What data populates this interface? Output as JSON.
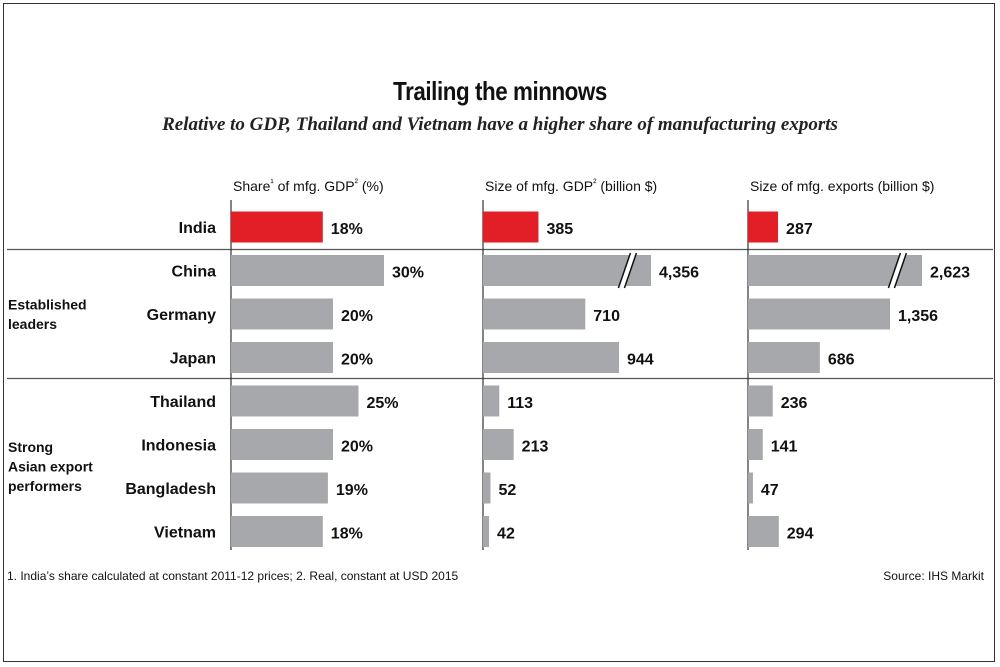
{
  "title": "Trailing the minnows",
  "subtitle": "Relative to GDP, Thailand and Vietnam have a higher share of manufacturing exports",
  "chart_data": {
    "type": "bar",
    "orientation": "horizontal",
    "categories": [
      "India",
      "China",
      "Germany",
      "Japan",
      "Thailand",
      "Indonesia",
      "Bangladesh",
      "Vietnam"
    ],
    "groups": [
      {
        "label": "Established\nleaders",
        "categories": [
          "China",
          "Germany",
          "Japan"
        ]
      },
      {
        "label": "Strong\nAsian export\nperformers",
        "categories": [
          "Thailand",
          "Indonesia",
          "Bangladesh",
          "Vietnam"
        ]
      }
    ],
    "highlight": {
      "category": "India",
      "color": "#e21e26"
    },
    "bar_color": "#a7a8ab",
    "panels": [
      {
        "title": "Share¹ of mfg. GDP² (%)",
        "values": [
          18,
          30,
          20,
          20,
          25,
          20,
          19,
          18
        ],
        "labels": [
          "18%",
          "30%",
          "20%",
          "20%",
          "25%",
          "20%",
          "19%",
          "18%"
        ],
        "xlim": [
          0,
          30
        ],
        "axis_break": []
      },
      {
        "title": "Size of mfg. GDP² (billion $)",
        "values": [
          385,
          4356,
          710,
          944,
          113,
          213,
          52,
          42
        ],
        "labels": [
          "385",
          "4,356",
          "710",
          "944",
          "113",
          "213",
          "52",
          "42"
        ],
        "xlim": [
          0,
          944
        ],
        "axis_break": [
          "China"
        ]
      },
      {
        "title": "Size of mfg. exports (billion $)",
        "values": [
          287,
          2623,
          1356,
          686,
          236,
          141,
          47,
          294
        ],
        "labels": [
          "287",
          "2,623",
          "1,356",
          "686",
          "236",
          "141",
          "47",
          "294"
        ],
        "xlim": [
          0,
          1356
        ],
        "axis_break": [
          "China"
        ]
      }
    ]
  },
  "footnote": "1. India’s share calculated at constant 2011-12 prices; 2. Real, constant at USD 2015",
  "source": "Source: IHS Markit"
}
